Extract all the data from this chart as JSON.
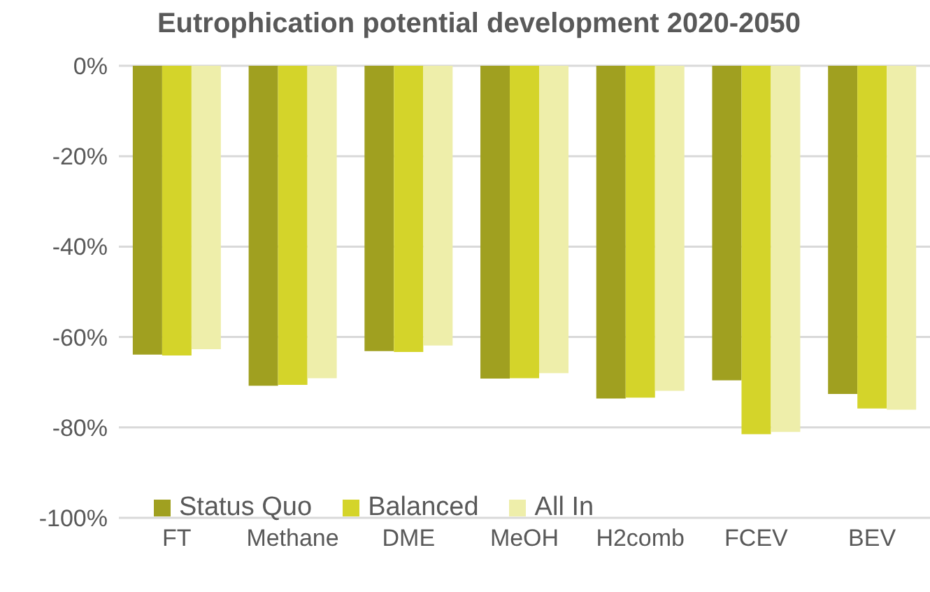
{
  "chart_data": {
    "type": "bar",
    "title": "Eutrophication potential development 2020-2050",
    "categories": [
      "FT",
      "Methane",
      "DME",
      "MeOH",
      "H2comb",
      "FCEV",
      "BEV"
    ],
    "series": [
      {
        "name": "Status Quo",
        "color": "#a0a020",
        "values": [
          -63.9,
          -70.8,
          -63.1,
          -69.2,
          -73.6,
          -69.6,
          -72.6
        ]
      },
      {
        "name": "Balanced",
        "color": "#d4d42a",
        "values": [
          -64.1,
          -70.6,
          -63.3,
          -69.1,
          -73.4,
          -81.5,
          -75.8
        ]
      },
      {
        "name": "All In",
        "color": "#eeeeaa",
        "values": [
          -62.7,
          -69.1,
          -61.9,
          -68,
          -71.9,
          -81,
          -76.1
        ]
      }
    ],
    "ylim": [
      -100,
      0
    ],
    "yticks": [
      {
        "value": -100,
        "label": "-100%"
      },
      {
        "value": -80,
        "label": "-80%"
      },
      {
        "value": -60,
        "label": "-60%"
      },
      {
        "value": -40,
        "label": "-40%"
      },
      {
        "value": -20,
        "label": "-20%"
      },
      {
        "value": 0,
        "label": "0%"
      }
    ],
    "grid": "y",
    "legend": "bottom"
  }
}
